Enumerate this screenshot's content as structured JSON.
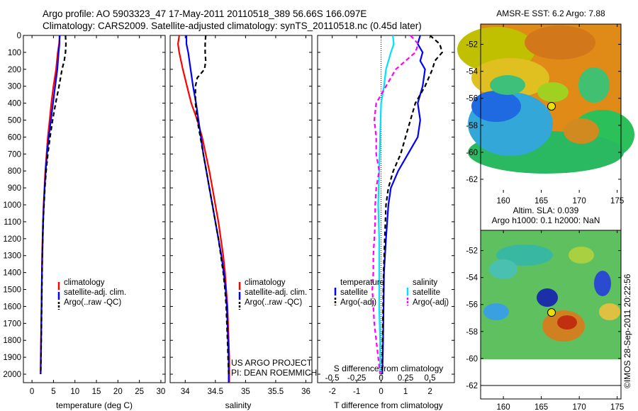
{
  "titles": {
    "line1": "Argo profile: AO 5903323_47 17-May-2011 20110518_389 56.66S 166.097E",
    "line2": "Climatology: CARS2009. Satellite-adjusted climatology: synTS_20110518.nc (0.45d later)"
  },
  "colors": {
    "climatology": "#ff0000",
    "satellite": "#0000ff",
    "argo": "#000000",
    "salinity_sat": "#00e0ff",
    "salinity_argo": "#ff00ff"
  },
  "chart_data": [
    {
      "type": "line",
      "id": "temperature",
      "xlabel": "temperature (deg C)",
      "ylabel": "",
      "xlim": [
        -2,
        31
      ],
      "ylim": [
        0,
        2050
      ],
      "y_reversed": true,
      "xticks": [
        0,
        5,
        10,
        15,
        20,
        25,
        30
      ],
      "yticks": [
        0,
        100,
        200,
        300,
        400,
        500,
        600,
        700,
        800,
        900,
        1000,
        1100,
        1200,
        1300,
        1400,
        1500,
        1600,
        1700,
        1800,
        1900,
        2000
      ],
      "legend": [
        "climatology",
        "satellite-adj. clim.",
        "Argo(..raw -QC)"
      ],
      "legend_position": "lower-right",
      "series": [
        {
          "name": "climatology",
          "color": "#ff0000",
          "dash": "",
          "points": [
            [
              6.5,
              0
            ],
            [
              6.3,
              50
            ],
            [
              6.0,
              100
            ],
            [
              5.6,
              200
            ],
            [
              5.0,
              300
            ],
            [
              4.5,
              400
            ],
            [
              4.1,
              500
            ],
            [
              3.7,
              600
            ],
            [
              3.4,
              700
            ],
            [
              3.1,
              800
            ],
            [
              2.9,
              900
            ],
            [
              2.7,
              1000
            ],
            [
              2.55,
              1100
            ],
            [
              2.45,
              1200
            ],
            [
              2.35,
              1300
            ],
            [
              2.3,
              1400
            ],
            [
              2.25,
              1500
            ],
            [
              2.2,
              1600
            ],
            [
              2.15,
              1700
            ],
            [
              2.1,
              1800
            ],
            [
              2.05,
              1900
            ],
            [
              2.0,
              2000
            ]
          ]
        },
        {
          "name": "satellite-adj. clim.",
          "color": "#0000ff",
          "dash": "",
          "points": [
            [
              6.4,
              0
            ],
            [
              6.4,
              50
            ],
            [
              6.2,
              100
            ],
            [
              5.9,
              200
            ],
            [
              5.4,
              300
            ],
            [
              4.9,
              400
            ],
            [
              4.4,
              500
            ],
            [
              3.9,
              600
            ],
            [
              3.5,
              700
            ],
            [
              3.2,
              800
            ],
            [
              2.95,
              900
            ],
            [
              2.75,
              1000
            ],
            [
              2.6,
              1100
            ],
            [
              2.5,
              1200
            ],
            [
              2.4,
              1300
            ],
            [
              2.33,
              1400
            ],
            [
              2.28,
              1500
            ],
            [
              2.22,
              1600
            ],
            [
              2.17,
              1700
            ],
            [
              2.12,
              1800
            ],
            [
              2.07,
              1900
            ],
            [
              2.02,
              2000
            ]
          ]
        },
        {
          "name": "Argo(..raw -QC)",
          "color": "#000000",
          "dash": "6,4",
          "points": [
            [
              7.8,
              0
            ],
            [
              7.9,
              50
            ],
            [
              7.8,
              100
            ],
            [
              7.5,
              150
            ],
            [
              7.0,
              200
            ],
            [
              6.3,
              300
            ],
            [
              5.5,
              400
            ],
            [
              4.8,
              500
            ],
            [
              4.2,
              600
            ],
            [
              3.7,
              700
            ],
            [
              3.3,
              800
            ],
            [
              3.0,
              900
            ],
            [
              2.8,
              1000
            ],
            [
              2.6,
              1100
            ],
            [
              2.5,
              1200
            ],
            [
              2.4,
              1300
            ],
            [
              2.35,
              1400
            ],
            [
              2.3,
              1500
            ],
            [
              2.25,
              1600
            ],
            [
              2.2,
              1700
            ],
            [
              2.15,
              1800
            ],
            [
              2.1,
              1900
            ],
            [
              2.05,
              2000
            ]
          ]
        }
      ]
    },
    {
      "type": "line",
      "id": "salinity",
      "xlabel": "salinity",
      "xlim": [
        33.75,
        36.1
      ],
      "ylim": [
        0,
        2050
      ],
      "y_reversed": true,
      "xticks": [
        34,
        34.5,
        35,
        35.5,
        36
      ],
      "xticklabels": [
        "34",
        "34.5",
        "35",
        "35.5",
        "36"
      ],
      "legend": [
        "climatology",
        "satellite-adj. clim.",
        "Argo(..raw -QC)"
      ],
      "legend_position": "lower-right",
      "annotation": [
        "US ARGO PROJECT",
        "PI: DEAN ROEMMICH"
      ],
      "series": [
        {
          "name": "climatology",
          "color": "#ff0000",
          "dash": "",
          "points": [
            [
              33.9,
              0
            ],
            [
              33.88,
              50
            ],
            [
              33.9,
              100
            ],
            [
              33.96,
              200
            ],
            [
              34.03,
              300
            ],
            [
              34.1,
              400
            ],
            [
              34.2,
              500
            ],
            [
              34.28,
              600
            ],
            [
              34.34,
              700
            ],
            [
              34.4,
              800
            ],
            [
              34.45,
              900
            ],
            [
              34.5,
              1000
            ],
            [
              34.55,
              1100
            ],
            [
              34.59,
              1200
            ],
            [
              34.63,
              1300
            ],
            [
              34.66,
              1400
            ],
            [
              34.68,
              1500
            ],
            [
              34.7,
              1600
            ],
            [
              34.71,
              1700
            ],
            [
              34.72,
              1800
            ],
            [
              34.73,
              1900
            ],
            [
              34.73,
              2050
            ]
          ]
        },
        {
          "name": "satellite-adj. clim.",
          "color": "#0000ff",
          "dash": "",
          "points": [
            [
              34.02,
              0
            ],
            [
              34.02,
              50
            ],
            [
              34.05,
              100
            ],
            [
              34.09,
              200
            ],
            [
              34.13,
              300
            ],
            [
              34.18,
              400
            ],
            [
              34.22,
              500
            ],
            [
              34.26,
              600
            ],
            [
              34.3,
              700
            ],
            [
              34.35,
              800
            ],
            [
              34.4,
              900
            ],
            [
              34.45,
              1000
            ],
            [
              34.5,
              1100
            ],
            [
              34.55,
              1200
            ],
            [
              34.6,
              1300
            ],
            [
              34.64,
              1400
            ],
            [
              34.67,
              1500
            ],
            [
              34.69,
              1600
            ],
            [
              34.7,
              1700
            ],
            [
              34.71,
              1800
            ],
            [
              34.72,
              1900
            ],
            [
              34.72,
              2050
            ]
          ]
        },
        {
          "name": "Argo(..raw -QC)",
          "color": "#000000",
          "dash": "6,4",
          "points": [
            [
              34.34,
              0
            ],
            [
              34.33,
              50
            ],
            [
              34.33,
              100
            ],
            [
              34.34,
              150
            ],
            [
              34.32,
              200
            ],
            [
              34.2,
              250
            ],
            [
              34.17,
              300
            ],
            [
              34.17,
              400
            ],
            [
              34.2,
              500
            ],
            [
              34.25,
              600
            ],
            [
              34.3,
              700
            ],
            [
              34.35,
              800
            ],
            [
              34.4,
              900
            ],
            [
              34.45,
              1000
            ],
            [
              34.5,
              1100
            ],
            [
              34.55,
              1200
            ],
            [
              34.59,
              1300
            ],
            [
              34.63,
              1400
            ],
            [
              34.66,
              1500
            ],
            [
              34.68,
              1600
            ],
            [
              34.69,
              1700
            ],
            [
              34.7,
              1800
            ],
            [
              34.71,
              1900
            ],
            [
              34.72,
              2000
            ]
          ]
        }
      ]
    },
    {
      "type": "line",
      "id": "difference",
      "xlabel": "T difference from climatology",
      "top_xlabel": "S difference from climatology",
      "xlim": [
        -2.6,
        3.0
      ],
      "ylim": [
        0,
        2050
      ],
      "y_reversed": true,
      "xticks": [
        -2,
        -1,
        0,
        1,
        2
      ],
      "top_xticklabels": [
        "-0.5",
        "-0.25",
        "0",
        "0.25",
        "0.5"
      ],
      "legend_groups": [
        {
          "title": "temperature",
          "items": [
            "satellite",
            "Argo(-adj)"
          ]
        },
        {
          "title": "salinity",
          "items": [
            "satellite",
            "Argo(-adj)"
          ]
        }
      ],
      "series": [
        {
          "name": "temperature satellite",
          "color": "#0000ff",
          "dash": "",
          "points": [
            [
              1.6,
              0
            ],
            [
              1.5,
              50
            ],
            [
              1.7,
              100
            ],
            [
              1.6,
              150
            ],
            [
              1.8,
              200
            ],
            [
              1.7,
              300
            ],
            [
              1.5,
              400
            ],
            [
              1.6,
              500
            ],
            [
              1.5,
              600
            ],
            [
              1.1,
              700
            ],
            [
              0.7,
              800
            ],
            [
              0.4,
              900
            ],
            [
              0.3,
              1000
            ],
            [
              0.2,
              1200
            ],
            [
              0.12,
              1400
            ],
            [
              0.1,
              1600
            ],
            [
              0.08,
              1800
            ],
            [
              0.05,
              2000
            ]
          ]
        },
        {
          "name": "temperature Argo(-adj)",
          "color": "#000000",
          "dash": "6,4",
          "points": [
            [
              2.0,
              0
            ],
            [
              2.4,
              50
            ],
            [
              2.5,
              100
            ],
            [
              2.2,
              150
            ],
            [
              2.1,
              200
            ],
            [
              1.8,
              300
            ],
            [
              1.4,
              400
            ],
            [
              1.2,
              500
            ],
            [
              1.0,
              600
            ],
            [
              0.8,
              700
            ],
            [
              0.5,
              800
            ],
            [
              0.3,
              900
            ],
            [
              0.2,
              1000
            ],
            [
              0.15,
              1200
            ],
            [
              0.1,
              1400
            ],
            [
              0.08,
              1600
            ],
            [
              0.06,
              1800
            ],
            [
              0.04,
              2000
            ]
          ]
        },
        {
          "name": "salinity satellite",
          "color": "#00e0ff",
          "dash": "",
          "points": [
            [
              0.12,
              0
            ],
            [
              0.13,
              50
            ],
            [
              0.1,
              100
            ],
            [
              0.05,
              200
            ],
            [
              0.03,
              300
            ],
            [
              0,
              400
            ],
            [
              -0.01,
              600
            ],
            [
              -0.02,
              800
            ],
            [
              -0.03,
              1000
            ],
            [
              -0.02,
              1200
            ],
            [
              -0.02,
              1400
            ],
            [
              -0.02,
              1600
            ],
            [
              -0.01,
              1800
            ],
            [
              -0.01,
              2000
            ]
          ]
        },
        {
          "name": "salinity Argo(-adj)",
          "color": "#ff00ff",
          "dash": "6,4",
          "points": [
            [
              0.3,
              0
            ],
            [
              0.38,
              50
            ],
            [
              0.35,
              100
            ],
            [
              0.25,
              150
            ],
            [
              0.15,
              200
            ],
            [
              0.05,
              300
            ],
            [
              -0.05,
              400
            ],
            [
              -0.07,
              500
            ],
            [
              -0.05,
              600
            ],
            [
              -0.05,
              700
            ],
            [
              -0.02,
              800
            ],
            [
              -0.05,
              900
            ],
            [
              -0.06,
              1000
            ],
            [
              -0.06,
              1100
            ],
            [
              -0.07,
              1200
            ],
            [
              -0.08,
              1300
            ],
            [
              -0.08,
              1400
            ],
            [
              -0.09,
              1500
            ],
            [
              -0.08,
              1600
            ],
            [
              -0.07,
              1700
            ],
            [
              -0.05,
              1800
            ],
            [
              -0.03,
              1900
            ],
            [
              -0.01,
              2000
            ]
          ]
        }
      ]
    },
    {
      "type": "heatmap",
      "id": "sst-map",
      "title": "AMSR-E SST: 6.2  Argo: 7.88",
      "xlim": [
        157,
        175.5
      ],
      "ylim": [
        -63,
        -50.5
      ],
      "data_extent": {
        "lon": [
          157,
          175.5
        ],
        "lat": [
          -60,
          -50.5
        ]
      },
      "xticks": [
        160,
        165,
        170,
        175
      ],
      "yticks": [
        -52,
        -54,
        -56,
        -58,
        -60,
        -62
      ],
      "marker": {
        "lon": 166.097,
        "lat": -56.66
      }
    },
    {
      "type": "heatmap",
      "id": "sla-map",
      "title_lines": [
        "Altim. SLA: 0.039",
        "Argo h1000: 0.1  h2000: NaN"
      ],
      "xlim": [
        157,
        175.5
      ],
      "ylim": [
        -63,
        -50.5
      ],
      "data_extent": {
        "lon": [
          157,
          175.5
        ],
        "lat": [
          -60,
          -50.5
        ]
      },
      "xticks": [
        160,
        165,
        170,
        175
      ],
      "yticks": [
        -52,
        -54,
        -56,
        -58,
        -60,
        -62
      ],
      "marker": {
        "lon": 166.097,
        "lat": -56.66
      }
    }
  ],
  "credit": "©IMOS 28-Sep-2011 20:22:56"
}
